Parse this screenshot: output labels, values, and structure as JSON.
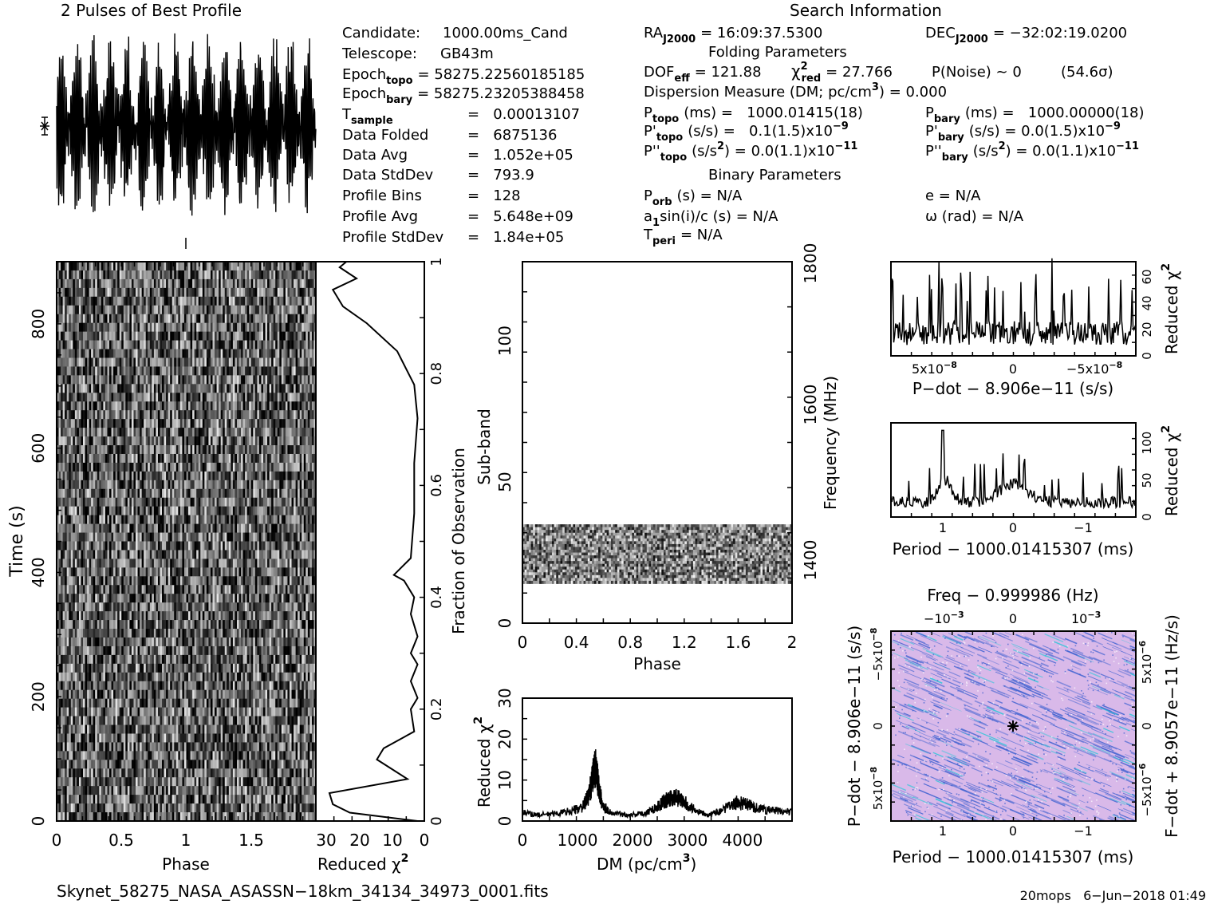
{
  "profile": {
    "title": "2 Pulses of Best Profile"
  },
  "info": {
    "header": "Search Information",
    "candidate_label": "Candidate:",
    "candidate": "1000.00ms_Cand",
    "telescope_label": "Telescope:",
    "telescope": "GB43m",
    "epoch_topo_label": "Epoch",
    "epoch_topo_sub": "topo",
    "epoch_topo": "= 58275.22560185185",
    "epoch_bary_label": "Epoch",
    "epoch_bary_sub": "bary",
    "epoch_bary": "= 58275.23205388458",
    "tsample_label": "T",
    "tsample_sub": "sample",
    "tsample": "=   0.00013107",
    "data_folded_label": "Data Folded",
    "data_folded": "=   6875136",
    "data_avg_label": "Data Avg",
    "data_avg": "=   1.052e+05",
    "data_std_label": "Data StdDev",
    "data_std": "=   793.9",
    "prof_bins_label": "Profile Bins",
    "prof_bins": "=   128",
    "prof_avg_label": "Profile Avg",
    "prof_avg": "=   5.648e+09",
    "prof_std_label": "Profile StdDev",
    "prof_std": "=   1.84e+05",
    "ra_label": "RA",
    "ra_sub": "J2000",
    "ra": "= 16:09:37.5300",
    "dec_label": "DEC",
    "dec_sub": "J2000",
    "dec": "= −32:02:19.0200",
    "folding_header": "Folding Parameters",
    "dof_label": "DOF",
    "dof_sub": "eff",
    "dof": "= 121.88",
    "chi_label": "χ",
    "chi_sup": "2",
    "chi_sub": "red",
    "chi": "= 27.766",
    "pnoise": "P(Noise) ~ 0",
    "sigma": "(54.6σ)",
    "dm_line": "Dispersion Measure (DM; pc/cm",
    "dm_sup": "3",
    "dm_value": ") = 0.000",
    "ptopo_label": "P",
    "ptopo_sub": "topo",
    "ptopo": "(ms) =   1000.01415(18)",
    "pbary_label": "P",
    "pbary_sub": "bary",
    "pbary": "(ms) =   1000.00000(18)",
    "pdtopo_label": "P'",
    "pdtopo_sub": "topo",
    "pdtopo": "(s/s) =   0.1(1.5)x10",
    "pdtopo_exp": "−9",
    "pdbary_label": "P'",
    "pdbary_sub": "bary",
    "pdbary": "(s/s) = 0.0(1.5)x10",
    "pdbary_exp": "−9",
    "pddtopo_label": "P''",
    "pddtopo_sub": "topo",
    "pddtopo_unit": "(s/s",
    "pddtopo_unit_sup": "2",
    "pddtopo": ") = 0.0(1.1)x10",
    "pddtopo_exp": "−11",
    "pddbary_label": "P''",
    "pddbary_sub": "bary",
    "pddbary_unit": "(s/s",
    "pddbary_unit_sup": "2",
    "pddbary": ") = 0.0(1.1)x10",
    "pddbary_exp": "−11",
    "binary_header": "Binary Parameters",
    "porb_label": "P",
    "porb_sub": "orb",
    "porb": "(s) = N/A",
    "ecc": "e = N/A",
    "a1_label": "a",
    "a1_sub": "1",
    "a1": "sin(i)/c (s) = N/A",
    "omega": "ω (rad) = N/A",
    "tperi_label": "T",
    "tperi_sub": "peri",
    "tperi": "= N/A"
  },
  "footer": {
    "filename": "Skynet_58275_NASA_ASASSN−18km_34134_34973_0001.fits",
    "stamp": "20mops   6−Jun−2018 01:49"
  },
  "colors": {
    "ink": "#000000",
    "ppdot_background": "#d9b9e9",
    "ppdot_streak": "#3a5fd0",
    "ppdot_accent": "#22c8d8"
  },
  "chart_data": [
    {
      "id": "time_phase",
      "type": "heatmap",
      "xlabel": "Phase",
      "ylabel": "Time (s)",
      "xlim": [
        0,
        2
      ],
      "ylim": [
        0,
        900
      ],
      "xticks": [
        "0",
        "0.5",
        "1",
        "1.5"
      ],
      "yticks": [
        "0",
        "200",
        "400",
        "600",
        "800"
      ],
      "ytick_values": [
        0,
        200,
        400,
        600,
        800
      ],
      "y2label": "Fraction of Observation",
      "y2ticks": [
        "0",
        "0.2",
        "0.4",
        "0.6",
        "0.8",
        "1"
      ],
      "cmap": "grayscale"
    },
    {
      "id": "time_chi",
      "type": "line",
      "xlabel": "Reduced χ",
      "xlabel_sup": "2",
      "xlim": [
        32,
        0
      ],
      "xticks": [
        "30",
        "20",
        "10",
        "0"
      ],
      "ylim": [
        0,
        1
      ],
      "points": [
        [
          2,
          0
        ],
        [
          22,
          0.015
        ],
        [
          27,
          0.03
        ],
        [
          28,
          0.05
        ],
        [
          5,
          0.075
        ],
        [
          14,
          0.11
        ],
        [
          12,
          0.13
        ],
        [
          3,
          0.16
        ],
        [
          4,
          0.2
        ],
        [
          2,
          0.22
        ],
        [
          4,
          0.25
        ],
        [
          2,
          0.28
        ],
        [
          4,
          0.3
        ],
        [
          2,
          0.33
        ],
        [
          4,
          0.37
        ],
        [
          3,
          0.4
        ],
        [
          6,
          0.43
        ],
        [
          9,
          0.44
        ],
        [
          4,
          0.47
        ],
        [
          3,
          0.55
        ],
        [
          3,
          0.64
        ],
        [
          2,
          0.72
        ],
        [
          3,
          0.78
        ],
        [
          8,
          0.84
        ],
        [
          17,
          0.89
        ],
        [
          24,
          0.92
        ],
        [
          27,
          0.95
        ],
        [
          20,
          0.97
        ],
        [
          25,
          0.99
        ],
        [
          23,
          1.0
        ]
      ]
    },
    {
      "id": "subband_phase",
      "type": "heatmap",
      "xlabel": "Phase",
      "ylabel": "Sub-band",
      "xlim": [
        0,
        2
      ],
      "ylim": [
        0,
        128
      ],
      "xticks": [
        "0",
        "0.4",
        "0.8",
        "1.2",
        "1.6",
        "2"
      ],
      "yticks": [
        "0",
        "50",
        "100"
      ],
      "ytick_values": [
        0,
        50,
        100
      ],
      "y2label": "Frequency (MHz)",
      "y2ticks": [
        "1400",
        "1600",
        "1800"
      ],
      "filled_band": [
        14,
        35
      ]
    },
    {
      "id": "dm_chi",
      "type": "line",
      "xlabel": "DM (pc/cm",
      "xlabel_sup": "3",
      "xlabel_end": ")",
      "ylabel": "Reduced χ",
      "ylabel_sup": "2",
      "xlim": [
        0,
        4900
      ],
      "ylim": [
        0,
        30
      ],
      "xticks": [
        "0",
        "1000",
        "2000",
        "3000",
        "4000"
      ],
      "xtick_values": [
        0,
        1000,
        2000,
        3000,
        4000
      ],
      "yticks": [
        "0",
        "10",
        "20",
        "30"
      ],
      "ytick_values": [
        0,
        10,
        20,
        30
      ],
      "points": [
        [
          0,
          2.0
        ],
        [
          300,
          1.5
        ],
        [
          600,
          1.8
        ],
        [
          900,
          2.5
        ],
        [
          1100,
          3.5
        ],
        [
          1200,
          6
        ],
        [
          1280,
          11
        ],
        [
          1330,
          13
        ],
        [
          1380,
          9
        ],
        [
          1450,
          4
        ],
        [
          1600,
          2
        ],
        [
          1900,
          1.5
        ],
        [
          2200,
          1.8
        ],
        [
          2450,
          3.5
        ],
        [
          2600,
          5
        ],
        [
          2750,
          6
        ],
        [
          2900,
          5
        ],
        [
          3100,
          3
        ],
        [
          3400,
          1.5
        ],
        [
          3600,
          2.5
        ],
        [
          3900,
          4.5
        ],
        [
          4100,
          4
        ],
        [
          4300,
          3
        ],
        [
          4600,
          2.5
        ],
        [
          4900,
          2.2
        ]
      ]
    },
    {
      "id": "pdot_chi",
      "type": "line",
      "xlabel": "P−dot − 8.906e−11 (s/s)",
      "y2label": "Reduced χ",
      "y2label_sup": "2",
      "xticks": [
        "5x10",
        "0",
        "−5x10"
      ],
      "xtick_exp": "−8",
      "y2ticks": [
        "0",
        "20",
        "40",
        "60"
      ],
      "ylim": [
        0,
        70
      ]
    },
    {
      "id": "period_chi",
      "type": "line",
      "xlabel": "Period − 1000.01415307 (ms)",
      "y2label": "Reduced χ",
      "y2label_sup": "2",
      "xticks": [
        "1",
        "0",
        "−1"
      ],
      "y2ticks": [
        "0",
        "50",
        "100"
      ],
      "ylim": [
        0,
        125
      ]
    },
    {
      "id": "ppdot",
      "type": "heatmap",
      "title": "Freq − 0.999986 (Hz)",
      "xlabel": "Period − 1000.01415307 (ms)",
      "ylabel": "P−dot − 8.906e−11 (s/s)",
      "y2label": "F−dot + 8.9057e−11 (Hz/s)",
      "xticks": [
        "1",
        "0",
        "−1"
      ],
      "top_ticks": [
        "−10",
        "0",
        "10"
      ],
      "top_tick_exp": [
        "−3",
        "",
        "−3"
      ],
      "yticks": [
        "−5x10",
        "0",
        "5x10"
      ],
      "ytick_exp": "−8",
      "y2ticks": [
        "5x10",
        "0",
        "−5x10"
      ],
      "y2tick_exp": "−6"
    }
  ]
}
